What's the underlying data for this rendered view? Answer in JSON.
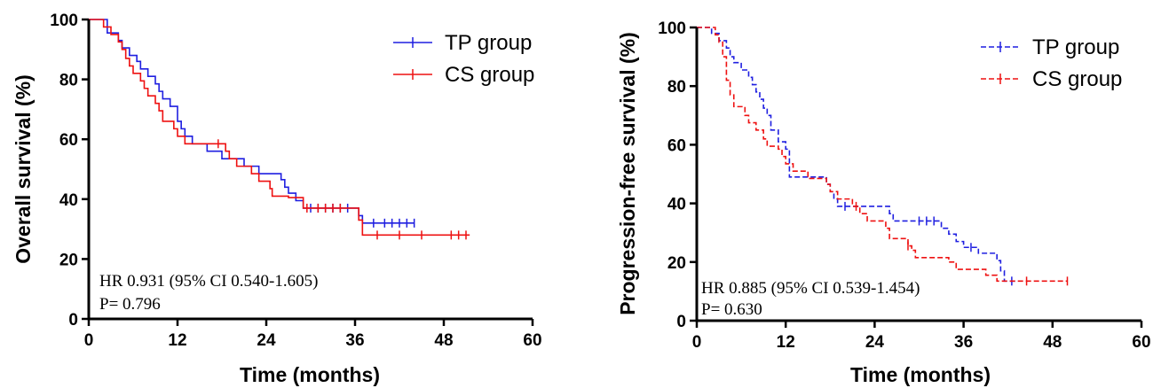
{
  "chart_data": [
    {
      "type": "line",
      "ylabel": "Overall survival (%)",
      "xlabel": "Time (months)",
      "xlim": [
        0,
        60
      ],
      "ylim": [
        0,
        100
      ],
      "xticks": [
        "0",
        "12",
        "24",
        "36",
        "48",
        "60"
      ],
      "yticks": [
        "0",
        "20",
        "40",
        "60",
        "80",
        "100"
      ],
      "legend_position": "top-right",
      "annotations": [
        "HR 0.931 (95% CI 0.540-1.605)",
        "P= 0.796"
      ],
      "series": [
        {
          "name": "TP group",
          "color": "#1f1fe0",
          "style": "solid",
          "steps": [
            [
              0,
              100
            ],
            [
              1.5,
              100
            ],
            [
              2.5,
              95.5
            ],
            [
              4,
              93
            ],
            [
              4.5,
              90.5
            ],
            [
              5.5,
              88
            ],
            [
              6.5,
              86
            ],
            [
              7,
              83.5
            ],
            [
              8,
              81
            ],
            [
              9,
              78.5
            ],
            [
              9.5,
              76
            ],
            [
              10,
              73.5
            ],
            [
              11,
              71
            ],
            [
              12,
              66
            ],
            [
              12.5,
              63.5
            ],
            [
              13,
              61
            ],
            [
              14,
              58.5
            ],
            [
              16,
              56
            ],
            [
              18,
              53.5
            ],
            [
              21,
              51
            ],
            [
              23,
              48.5
            ],
            [
              26,
              46.5
            ],
            [
              26.5,
              44
            ],
            [
              27,
              42
            ],
            [
              28,
              39.5
            ],
            [
              29,
              37
            ],
            [
              36.5,
              34.5
            ],
            [
              37,
              32
            ]
          ],
          "censor_x": [
            30,
            31,
            32,
            33,
            34,
            35,
            38.5,
            40,
            41,
            42,
            43,
            44
          ],
          "end_x": 44
        },
        {
          "name": "CS group",
          "color": "#ee1111",
          "style": "solid",
          "steps": [
            [
              0,
              100
            ],
            [
              2,
              97.5
            ],
            [
              3,
              95
            ],
            [
              4,
              92.5
            ],
            [
              4.5,
              90
            ],
            [
              5,
              87
            ],
            [
              5.5,
              84.5
            ],
            [
              6,
              82
            ],
            [
              7,
              79.5
            ],
            [
              7.5,
              77
            ],
            [
              8,
              74.5
            ],
            [
              9,
              72
            ],
            [
              9.5,
              69.5
            ],
            [
              10,
              66
            ],
            [
              11.5,
              63.5
            ],
            [
              12,
              61
            ],
            [
              13,
              58.5
            ],
            [
              18.5,
              56
            ],
            [
              19,
              53.5
            ],
            [
              20,
              51
            ],
            [
              22,
              48.5
            ],
            [
              23,
              46
            ],
            [
              24.5,
              43.5
            ],
            [
              24.8,
              41
            ],
            [
              27,
              40.5
            ],
            [
              29,
              37
            ],
            [
              36.5,
              33
            ],
            [
              37,
              28
            ]
          ],
          "censor_x": [
            17.5,
            29.5,
            31,
            32,
            33,
            34,
            39,
            42,
            45,
            49,
            50,
            51
          ],
          "end_x": 51.5
        }
      ]
    },
    {
      "type": "line",
      "ylabel": "Progression-free survival (%)",
      "xlabel": "Time (months)",
      "xlim": [
        0,
        60
      ],
      "ylim": [
        0,
        100
      ],
      "xticks": [
        "0",
        "12",
        "24",
        "36",
        "48",
        "60"
      ],
      "yticks": [
        "0",
        "20",
        "40",
        "60",
        "80",
        "100"
      ],
      "legend_position": "top-right",
      "annotations": [
        "HR 0.885 (95% CI 0.539-1.454)",
        "P= 0.630"
      ],
      "series": [
        {
          "name": "TP group",
          "color": "#1f1fe0",
          "style": "dashed",
          "steps": [
            [
              0,
              100
            ],
            [
              1.5,
              100
            ],
            [
              2,
              98
            ],
            [
              3,
              95.5
            ],
            [
              4,
              93
            ],
            [
              4.5,
              90
            ],
            [
              5,
              88
            ],
            [
              6,
              85.5
            ],
            [
              7,
              83
            ],
            [
              7.5,
              80.5
            ],
            [
              8,
              78
            ],
            [
              8.5,
              75.5
            ],
            [
              9,
              72.5
            ],
            [
              9.5,
              70
            ],
            [
              10,
              65
            ],
            [
              11,
              61
            ],
            [
              12,
              58.5
            ],
            [
              12.5,
              49
            ],
            [
              15,
              49
            ],
            [
              17.5,
              46.5
            ],
            [
              18,
              44
            ],
            [
              18.5,
              41.5
            ],
            [
              19,
              39
            ],
            [
              21,
              39
            ],
            [
              26,
              36.5
            ],
            [
              26.5,
              34
            ],
            [
              32,
              34
            ],
            [
              33,
              31.5
            ],
            [
              34,
              29.5
            ],
            [
              35,
              27
            ],
            [
              36,
              25
            ],
            [
              37.5,
              25
            ],
            [
              38,
              23
            ],
            [
              40,
              23
            ],
            [
              40.5,
              20.5
            ],
            [
              41,
              17
            ],
            [
              41.5,
              13.5
            ]
          ],
          "censor_x": [
            20,
            30,
            31,
            32,
            37,
            42.5
          ],
          "end_x": 43
        },
        {
          "name": "CS group",
          "color": "#ee1111",
          "style": "dashed",
          "steps": [
            [
              0,
              100
            ],
            [
              2.5,
              97.5
            ],
            [
              3,
              95
            ],
            [
              3.5,
              90
            ],
            [
              4,
              82
            ],
            [
              4.5,
              77
            ],
            [
              5,
              73
            ],
            [
              6.5,
              70
            ],
            [
              7,
              67.5
            ],
            [
              8,
              65
            ],
            [
              9,
              62
            ],
            [
              9.5,
              59.5
            ],
            [
              11,
              58.5
            ],
            [
              11.5,
              56
            ],
            [
              12,
              53.5
            ],
            [
              13,
              51
            ],
            [
              15,
              48.5
            ],
            [
              17.5,
              46.5
            ],
            [
              18,
              44
            ],
            [
              19,
              41.5
            ],
            [
              21,
              39
            ],
            [
              22,
              36.5
            ],
            [
              23,
              34
            ],
            [
              25.5,
              31.5
            ],
            [
              26,
              28
            ],
            [
              28,
              28
            ],
            [
              28.5,
              25.5
            ],
            [
              29,
              24
            ],
            [
              29.5,
              21.5
            ],
            [
              34,
              20
            ],
            [
              35,
              17.5
            ],
            [
              37,
              17.5
            ],
            [
              39,
              15.5
            ],
            [
              40,
              15.5
            ],
            [
              40.5,
              13.5
            ]
          ],
          "censor_x": [
            21.5,
            28.5,
            44.5,
            50
          ],
          "end_x": 50
        }
      ]
    }
  ]
}
